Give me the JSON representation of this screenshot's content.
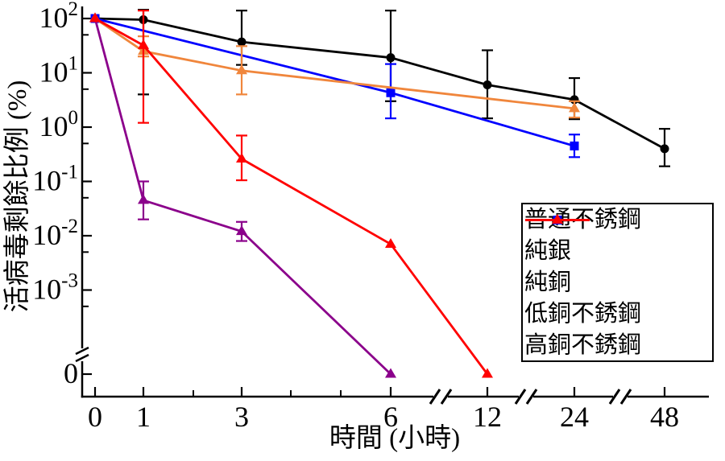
{
  "chart_data": {
    "type": "line",
    "title": "",
    "xlabel": "時間 (小時)",
    "ylabel": "活病毒剩餘比例 (%)",
    "x_axis": {
      "scale": "linear 0-6 then broken axis segments",
      "ticks": [
        0,
        1,
        3,
        6,
        12,
        24,
        48
      ],
      "minor_ticks": [
        2,
        4,
        5
      ],
      "breaks_between": [
        [
          6,
          12
        ],
        [
          12,
          24
        ],
        [
          24,
          48
        ]
      ]
    },
    "y_axis": {
      "scale": "log",
      "tick_exponents": [
        2,
        1,
        0,
        -1,
        -2,
        -3
      ],
      "minor_tick_values": [
        50,
        5,
        0.5,
        0.05,
        0.005,
        0.0005
      ],
      "zero_tick_label": "0",
      "break_above_zero": true,
      "top_value": 100
    },
    "legend_position": "lower-right",
    "grid": false,
    "series": [
      {
        "name": "普通不銹鋼",
        "color": "#000000",
        "marker": "circle",
        "points": [
          {
            "x": 0,
            "y": 100
          },
          {
            "x": 1,
            "y": 95,
            "err_lo": 4,
            "err_hi": 145
          },
          {
            "x": 3,
            "y": 37,
            "err_lo": 14,
            "err_hi": 140
          },
          {
            "x": 6,
            "y": 19,
            "err_lo": 3,
            "err_hi": 140
          },
          {
            "x": 12,
            "y": 6,
            "err_lo": 1.45,
            "err_hi": 26
          },
          {
            "x": 24,
            "y": 3.2,
            "err_lo": 1.4,
            "err_hi": 8
          },
          {
            "x": 48,
            "y": 0.4,
            "err_lo": 0.19,
            "err_hi": 0.93
          }
        ]
      },
      {
        "name": "純銀",
        "color": "#0000FF",
        "marker": "square",
        "points": [
          {
            "x": 0,
            "y": 100
          },
          {
            "x": 6,
            "y": 4.3,
            "err_lo": 1.45,
            "err_hi": 14.5
          },
          {
            "x": 24,
            "y": 0.45,
            "err_lo": 0.28,
            "err_hi": 0.73
          }
        ]
      },
      {
        "name": "純銅",
        "color": "#8B008B",
        "marker": "triangle",
        "points": [
          {
            "x": 0,
            "y": 100
          },
          {
            "x": 1,
            "y": 0.045,
            "err_lo": 0.02,
            "err_hi": 0.1
          },
          {
            "x": 3,
            "y": 0.012,
            "err_lo": 0.008,
            "err_hi": 0.018
          },
          {
            "x": 6,
            "y": 0
          }
        ]
      },
      {
        "name": "低銅不銹鋼",
        "color": "#F0863C",
        "marker": "triangle",
        "points": [
          {
            "x": 0,
            "y": 100
          },
          {
            "x": 1,
            "y": 25,
            "err_lo": 20,
            "err_hi": 47
          },
          {
            "x": 3,
            "y": 11,
            "err_lo": 4,
            "err_hi": 31
          },
          {
            "x": 24,
            "y": 2.2,
            "err_lo": 1.5,
            "err_hi": 3.0
          }
        ]
      },
      {
        "name": "高銅不銹鋼",
        "color": "#FF0000",
        "marker": "triangle",
        "points": [
          {
            "x": 0,
            "y": 100
          },
          {
            "x": 1,
            "y": 32,
            "err_lo": 1.2,
            "err_hi": 140
          },
          {
            "x": 3,
            "y": 0.26,
            "err_lo": 0.105,
            "err_hi": 0.7
          },
          {
            "x": 6,
            "y": 0.007
          },
          {
            "x": 12,
            "y": 0
          }
        ]
      }
    ]
  }
}
